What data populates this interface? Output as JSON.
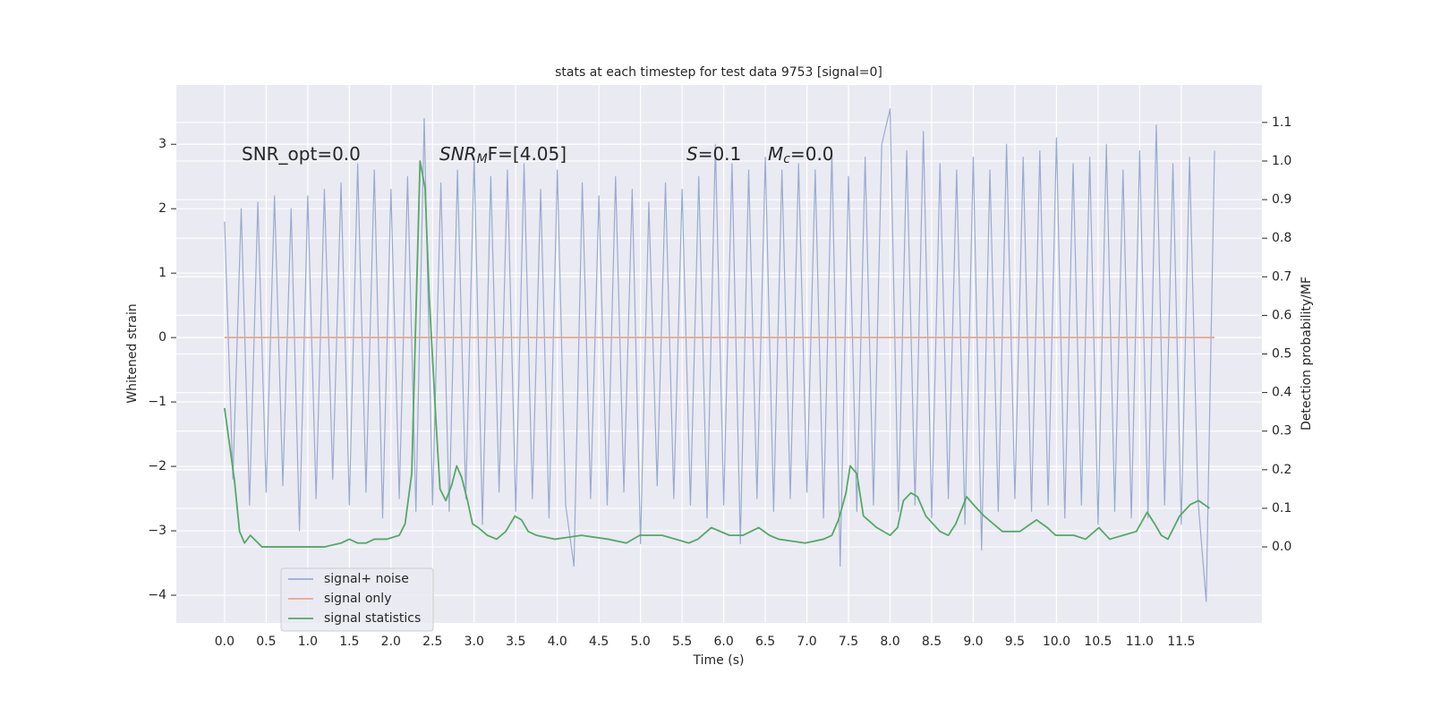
{
  "chart_data": {
    "type": "line",
    "title": "stats at each timestep for test data 9753 [signal=0]",
    "xlabel": "Time (s)",
    "ylabel": "Whitened strain",
    "y2label": "Detection probability/MF",
    "xlim": [
      -0.58,
      12.47
    ],
    "ylim": [
      -4.43,
      3.92
    ],
    "y2lim": [
      -0.197,
      1.197
    ],
    "xticks": [
      {
        "value": 0,
        "label": "0.0"
      },
      0.5,
      {
        "value": 1,
        "label": "1.0"
      },
      1.5,
      {
        "value": 2,
        "label": "2.0"
      },
      2.5,
      {
        "value": 3,
        "label": "3.0"
      },
      3.5,
      {
        "value": 4,
        "label": "4.0"
      },
      4.5,
      {
        "value": 5,
        "label": "5.0"
      },
      5.5,
      {
        "value": 6,
        "label": "6.0"
      },
      6.5,
      {
        "value": 7,
        "label": "7.0"
      },
      7.5,
      {
        "value": 8,
        "label": "8.0"
      },
      8.5,
      {
        "value": 9,
        "label": "9.0"
      },
      9.5,
      {
        "value": 10,
        "label": "10.0"
      },
      10.5,
      {
        "value": 11,
        "label": "11.0"
      },
      11.5
    ],
    "yticks": [
      {
        "value": -4,
        "label": "−4"
      },
      {
        "value": -3,
        "label": "−3"
      },
      {
        "value": -2,
        "label": "−2"
      },
      {
        "value": -1,
        "label": "−1"
      },
      0,
      1,
      2,
      3
    ],
    "y2ticks": [
      {
        "value": 0,
        "label": "0.0"
      },
      0.1,
      0.2,
      0.3,
      0.4,
      0.5,
      0.6,
      0.7,
      0.8,
      0.9,
      {
        "value": 1,
        "label": "1.0"
      },
      1.1
    ],
    "grid": true,
    "legend": "lower left",
    "annotations": [
      {
        "main": "SNR_opt=0.0"
      },
      {
        "main": "SNR",
        "sub": "M",
        "tail": "F=[4.05]"
      },
      {
        "main": "S",
        "tail": "=0.1"
      },
      {
        "main": "M",
        "sub": "c",
        "tail": "=0.0"
      }
    ],
    "series": [
      {
        "name": "signal+ noise",
        "color": "#9aabd0",
        "x": [
          0.0,
          0.1,
          0.2,
          0.3,
          0.4,
          0.5,
          0.6,
          0.7,
          0.8,
          0.9,
          1.0,
          1.1,
          1.2,
          1.3,
          1.4,
          1.5,
          1.6,
          1.7,
          1.8,
          1.9,
          2.0,
          2.1,
          2.2,
          2.3,
          2.4,
          2.5,
          2.6,
          2.7,
          2.8,
          2.9,
          3.0,
          3.1,
          3.2,
          3.3,
          3.4,
          3.5,
          3.6,
          3.7,
          3.8,
          3.9,
          4.0,
          4.1,
          4.2,
          4.3,
          4.4,
          4.5,
          4.6,
          4.7,
          4.8,
          4.9,
          5.0,
          5.1,
          5.2,
          5.3,
          5.4,
          5.5,
          5.6,
          5.7,
          5.8,
          5.9,
          6.0,
          6.1,
          6.2,
          6.3,
          6.4,
          6.5,
          6.6,
          6.7,
          6.8,
          6.9,
          7.0,
          7.1,
          7.2,
          7.3,
          7.4,
          7.5,
          7.6,
          7.7,
          7.8,
          7.9,
          8.0,
          8.1,
          8.2,
          8.3,
          8.4,
          8.5,
          8.6,
          8.7,
          8.8,
          8.9,
          9.0,
          9.1,
          9.2,
          9.3,
          9.4,
          9.5,
          9.6,
          9.7,
          9.8,
          9.9,
          10.0,
          10.1,
          10.2,
          10.3,
          10.4,
          10.5,
          10.6,
          10.7,
          10.8,
          10.9,
          11.0,
          11.1,
          11.2,
          11.3,
          11.4,
          11.5,
          11.6,
          11.7,
          11.8,
          11.9
        ],
        "values": [
          1.8,
          -2.2,
          2.0,
          -2.6,
          2.1,
          -2.4,
          2.2,
          -2.3,
          2.0,
          -3.0,
          2.2,
          -2.5,
          2.3,
          -2.2,
          2.4,
          -2.6,
          2.7,
          -2.4,
          2.6,
          -2.8,
          2.3,
          -2.5,
          2.5,
          -2.7,
          3.4,
          -2.6,
          2.4,
          -2.7,
          2.6,
          -2.5,
          2.8,
          -2.9,
          2.5,
          -2.4,
          2.6,
          -2.7,
          2.7,
          -2.5,
          2.3,
          -2.8,
          2.6,
          -2.6,
          -3.55,
          2.4,
          -2.5,
          2.2,
          -2.6,
          2.5,
          -2.4,
          2.3,
          -3.2,
          2.1,
          -2.3,
          2.4,
          -2.5,
          2.3,
          -2.6,
          2.5,
          -2.8,
          3.0,
          -2.6,
          2.7,
          -3.2,
          2.6,
          -2.5,
          2.8,
          -2.7,
          2.6,
          -2.5,
          2.7,
          -2.4,
          2.6,
          -2.8,
          2.9,
          -3.55,
          2.5,
          -2.7,
          2.8,
          -2.6,
          3.0,
          3.55,
          -2.7,
          2.9,
          -2.6,
          3.2,
          -2.8,
          2.7,
          -2.5,
          2.6,
          -2.9,
          2.8,
          -3.3,
          2.6,
          -2.7,
          3.0,
          -2.5,
          2.8,
          -2.7,
          2.9,
          -2.6,
          3.1,
          -2.8,
          2.7,
          -2.6,
          2.8,
          -2.9,
          3.0,
          -2.7,
          2.6,
          -2.8,
          2.9,
          -2.8,
          3.3,
          -2.6,
          2.7,
          -2.9,
          2.8,
          -2.5,
          -4.1,
          2.9
        ]
      },
      {
        "name": "signal only",
        "color": "#e8a98a",
        "x": [
          0.0,
          11.9
        ],
        "values": [
          0,
          0
        ]
      },
      {
        "name": "signal statistics",
        "color": "#55a868",
        "axis": "y2",
        "x": [
          0.0,
          0.12,
          0.18,
          0.24,
          0.31,
          0.45,
          0.6,
          0.8,
          1.0,
          1.2,
          1.4,
          1.5,
          1.6,
          1.7,
          1.8,
          1.95,
          2.1,
          2.17,
          2.25,
          2.3,
          2.35,
          2.41,
          2.46,
          2.54,
          2.59,
          2.66,
          2.73,
          2.79,
          2.85,
          2.92,
          2.98,
          3.05,
          3.16,
          3.27,
          3.38,
          3.49,
          3.57,
          3.65,
          3.75,
          3.97,
          4.29,
          4.61,
          4.83,
          4.99,
          5.26,
          5.58,
          5.69,
          5.85,
          6.07,
          6.23,
          6.42,
          6.55,
          6.66,
          6.98,
          7.2,
          7.3,
          7.38,
          7.47,
          7.52,
          7.6,
          7.68,
          7.84,
          8.0,
          8.09,
          8.16,
          8.25,
          8.33,
          8.43,
          8.6,
          8.7,
          8.79,
          8.92,
          9.0,
          9.13,
          9.35,
          9.56,
          9.76,
          9.89,
          9.99,
          10.21,
          10.35,
          10.51,
          10.64,
          10.8,
          10.96,
          11.09,
          11.18,
          11.26,
          11.34,
          11.48,
          11.61,
          11.71,
          11.84
        ],
        "values": [
          0.36,
          0.17,
          0.04,
          0.01,
          0.03,
          0.0,
          0.0,
          0.0,
          0.0,
          0.0,
          0.01,
          0.02,
          0.01,
          0.01,
          0.02,
          0.02,
          0.03,
          0.06,
          0.19,
          0.6,
          1.0,
          0.93,
          0.65,
          0.33,
          0.15,
          0.12,
          0.16,
          0.21,
          0.18,
          0.12,
          0.06,
          0.05,
          0.03,
          0.02,
          0.04,
          0.08,
          0.07,
          0.04,
          0.03,
          0.02,
          0.03,
          0.02,
          0.01,
          0.03,
          0.03,
          0.01,
          0.02,
          0.05,
          0.03,
          0.03,
          0.05,
          0.03,
          0.02,
          0.01,
          0.02,
          0.03,
          0.07,
          0.14,
          0.21,
          0.19,
          0.08,
          0.05,
          0.03,
          0.05,
          0.12,
          0.14,
          0.13,
          0.08,
          0.04,
          0.03,
          0.06,
          0.13,
          0.11,
          0.08,
          0.04,
          0.04,
          0.07,
          0.05,
          0.03,
          0.03,
          0.02,
          0.05,
          0.02,
          0.03,
          0.04,
          0.09,
          0.06,
          0.03,
          0.02,
          0.08,
          0.11,
          0.12,
          0.1
        ]
      }
    ]
  }
}
